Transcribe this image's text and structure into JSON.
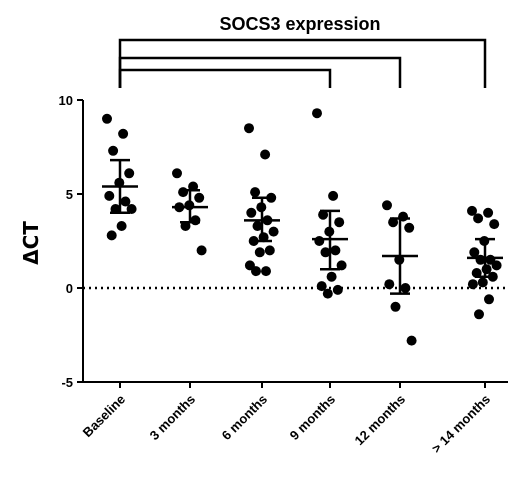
{
  "chart_data": {
    "type": "scatter",
    "title": "SOCS3 expression",
    "ylabel": "ΔCT",
    "xlabel": "",
    "ylim": [
      -5,
      10
    ],
    "yticks": [
      -5,
      0,
      5,
      10
    ],
    "reference_line": 0,
    "categories": [
      "Baseline",
      "3 months",
      "6 months",
      "9 months",
      "12 months",
      "> 14 months"
    ],
    "groups": [
      {
        "name": "Baseline",
        "mean": 5.4,
        "sd_low": 4.0,
        "sd_high": 6.8,
        "points": [
          9.0,
          8.2,
          7.3,
          6.1,
          5.6,
          4.9,
          4.6,
          4.2,
          4.2,
          3.3,
          2.8
        ]
      },
      {
        "name": "3 months",
        "mean": 4.3,
        "sd_low": 3.5,
        "sd_high": 5.2,
        "points": [
          6.1,
          5.4,
          5.1,
          4.8,
          4.4,
          4.3,
          3.6,
          3.3,
          2.0
        ]
      },
      {
        "name": "6 months",
        "mean": 3.6,
        "sd_low": 2.5,
        "sd_high": 4.8,
        "points": [
          8.5,
          7.1,
          5.1,
          4.8,
          4.3,
          4.0,
          3.6,
          3.3,
          3.0,
          2.7,
          2.5,
          2.0,
          1.9,
          1.2,
          0.9,
          0.9
        ]
      },
      {
        "name": "9 months",
        "mean": 2.6,
        "sd_low": 1.0,
        "sd_high": 4.1,
        "points": [
          9.3,
          4.9,
          3.9,
          3.5,
          3.0,
          2.5,
          2.0,
          1.9,
          1.2,
          0.6,
          0.1,
          -0.1,
          -0.3
        ]
      },
      {
        "name": "12 months",
        "mean": 1.7,
        "sd_low": -0.3,
        "sd_high": 3.7,
        "points": [
          4.4,
          3.8,
          3.5,
          3.2,
          1.5,
          0.2,
          0.0,
          -1.0,
          -2.8
        ]
      },
      {
        "name": "> 14 months",
        "mean": 1.6,
        "sd_low": 0.6,
        "sd_high": 2.6,
        "points": [
          4.1,
          4.0,
          3.7,
          3.4,
          2.5,
          1.9,
          1.5,
          1.5,
          1.2,
          1.0,
          0.8,
          0.6,
          0.3,
          0.2,
          -0.6,
          -1.4
        ]
      }
    ],
    "comparison_brackets": [
      {
        "from": "Baseline",
        "to": "> 14 months"
      },
      {
        "from": "Baseline",
        "to": "12 months"
      },
      {
        "from": "Baseline",
        "to": "9 months"
      }
    ]
  }
}
